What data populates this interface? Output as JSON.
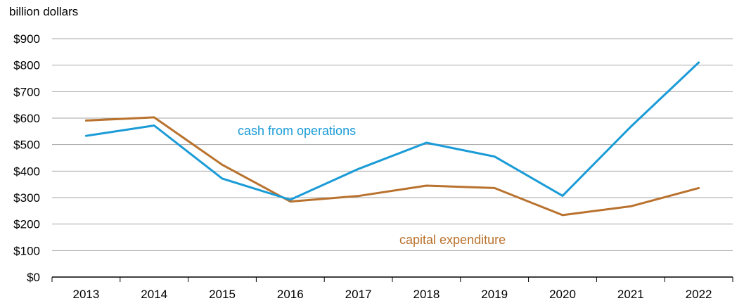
{
  "chart_data": {
    "type": "line",
    "title": "",
    "ylabel": "billion dollars",
    "xlabel": "",
    "categories": [
      "2013",
      "2014",
      "2015",
      "2016",
      "2017",
      "2018",
      "2019",
      "2020",
      "2021",
      "2022"
    ],
    "ylim": [
      0,
      900
    ],
    "yticks": [
      0,
      100,
      200,
      300,
      400,
      500,
      600,
      700,
      800,
      900
    ],
    "ytick_labels": [
      "$0",
      "$100",
      "$200",
      "$300",
      "$400",
      "$500",
      "$600",
      "$700",
      "$800",
      "$900"
    ],
    "grid": true,
    "series": [
      {
        "name": "cash from operations",
        "color": "#1a9bd7",
        "values": [
          533,
          572,
          372,
          292,
          408,
          507,
          455,
          307,
          567,
          810
        ]
      },
      {
        "name": "capital expenditure",
        "color": "#b9722e",
        "values": [
          591,
          603,
          424,
          285,
          306,
          345,
          336,
          234,
          267,
          336
        ]
      }
    ]
  }
}
